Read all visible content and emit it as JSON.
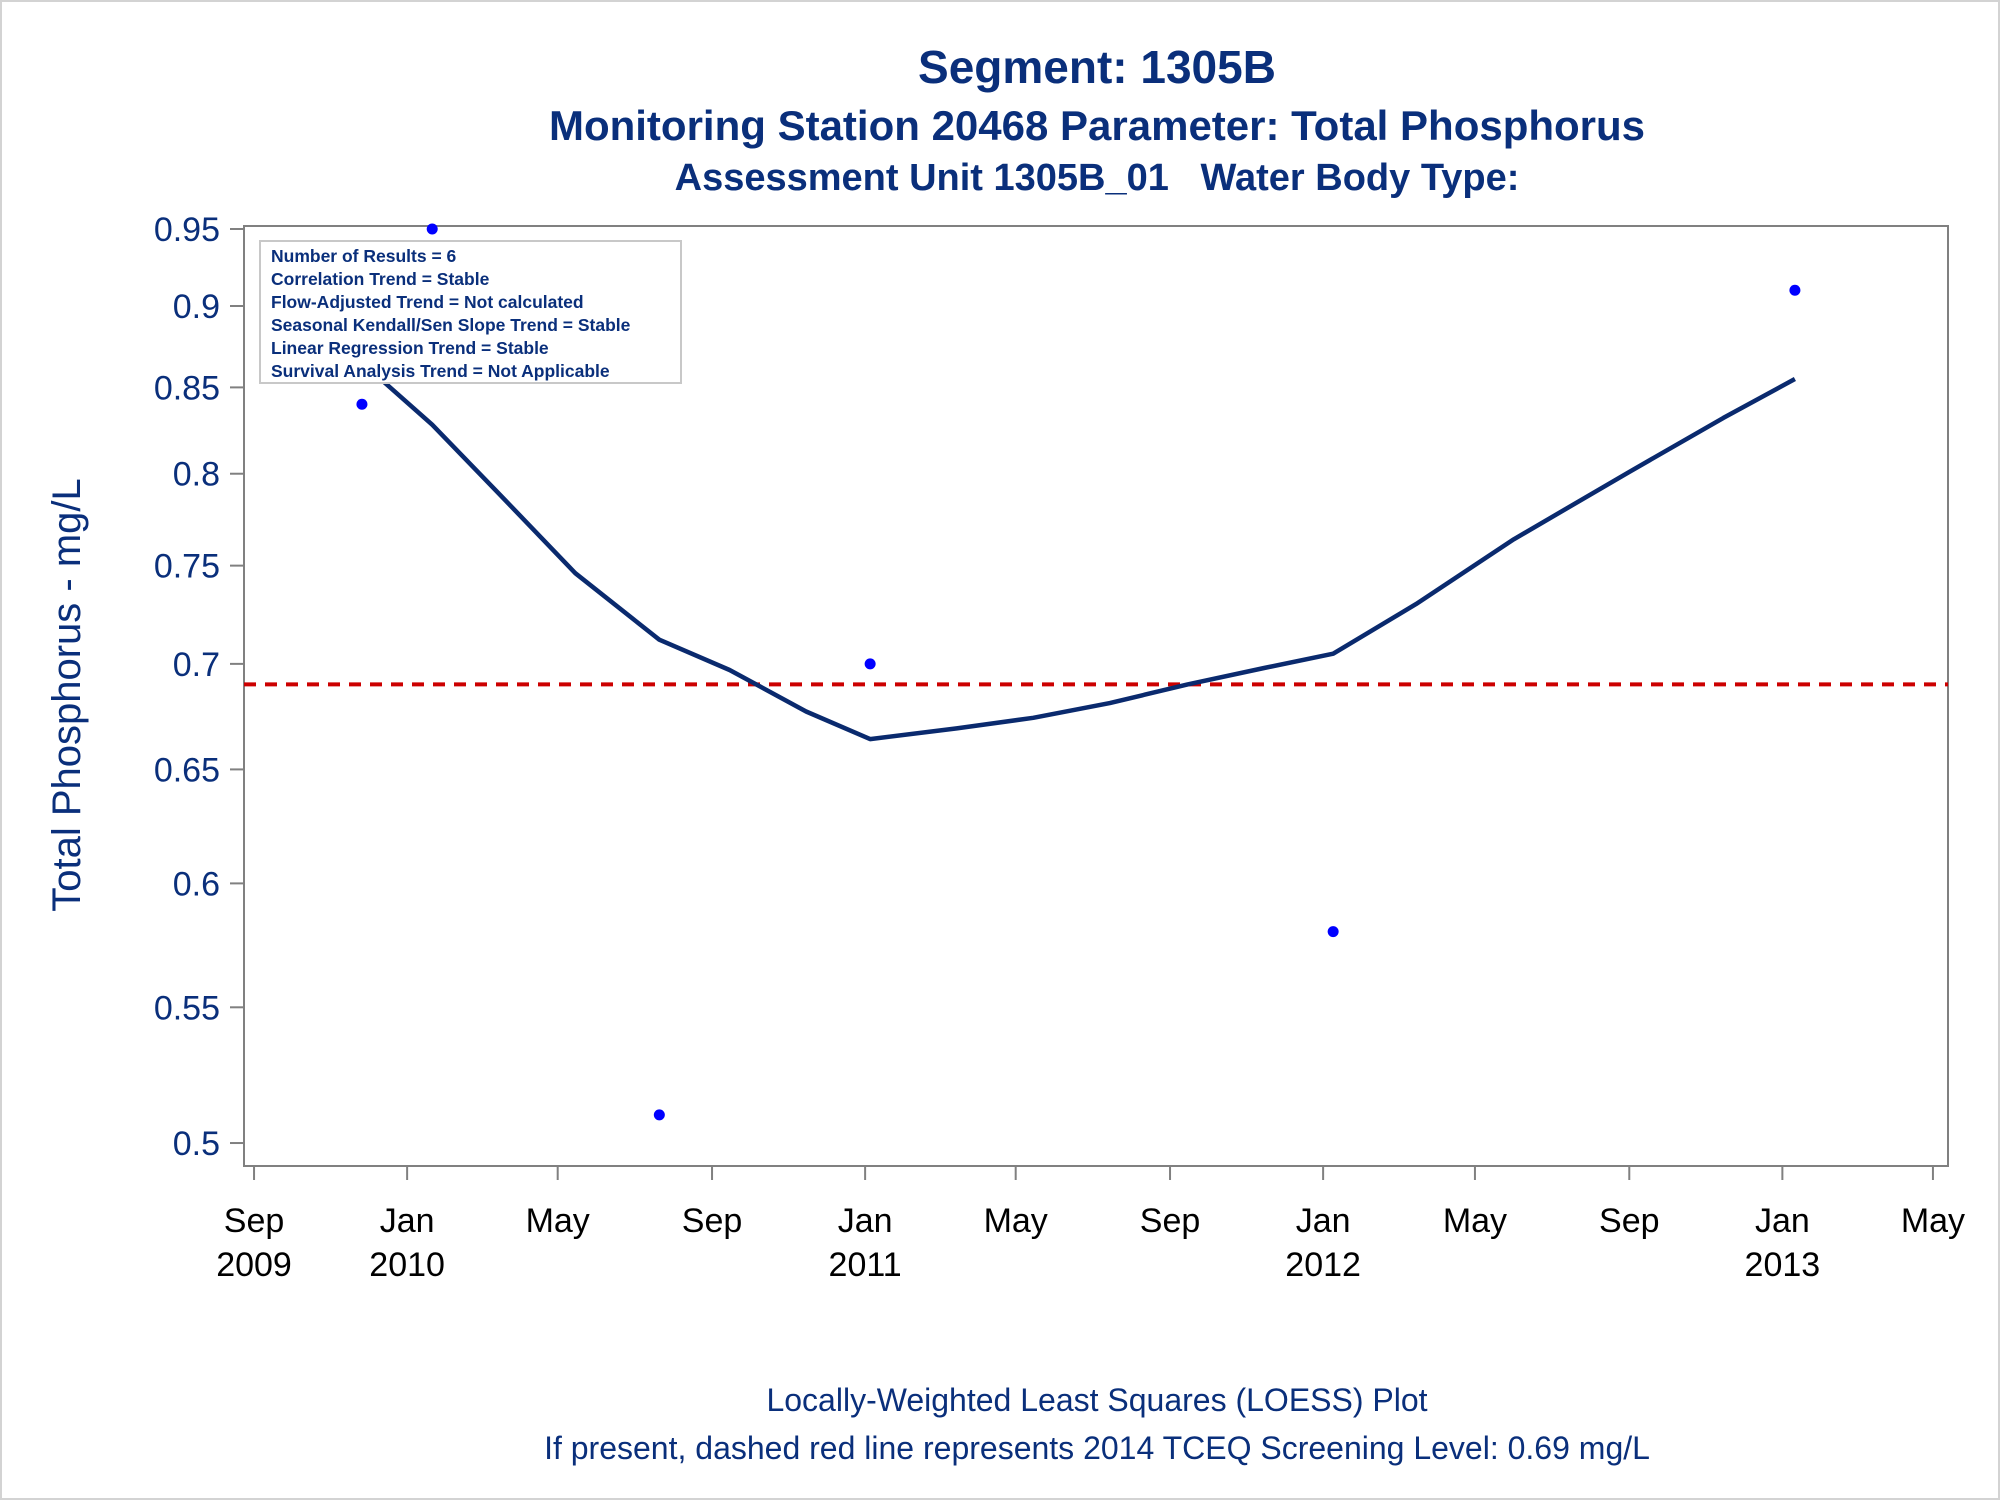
{
  "page": {
    "title": "Segment: 1305B",
    "subtitle_line1": "Monitoring Station 20468 Parameter: Total Phosphorus",
    "subtitle_line2": "Assessment Unit 1305B_01   Water Body Type:",
    "footnote_line1": "Locally-Weighted Least Squares (LOESS) Plot",
    "footnote_line2": "If present, dashed red line represents 2014 TCEQ Screening Level: 0.69 mg/L"
  },
  "stats_box": [
    "Number of Results = 6",
    "Correlation Trend = Stable",
    "Flow-Adjusted Trend = Not calculated",
    "Seasonal Kendall/Sen Slope Trend = Stable",
    "Linear Regression Trend = Stable",
    "Survival Analysis Trend = Not Applicable"
  ],
  "colors": {
    "text": "#0a2f7b",
    "points": "#0000ff",
    "loess_line": "#0a2a6e",
    "screening_line": "#cc0000",
    "axis": "#808080"
  },
  "chart_data": {
    "type": "scatter",
    "ylabel": "Total Phosphorus - mg/L",
    "xlabel": "",
    "y_scale": "log",
    "ylim": [
      0.492,
      0.952
    ],
    "xlim": [
      "2009-08-24",
      "2013-05-13"
    ],
    "yticks": [
      0.5,
      0.55,
      0.6,
      0.65,
      0.7,
      0.75,
      0.8,
      0.85,
      0.9,
      0.95
    ],
    "ytick_labels": [
      "0.5",
      "0.55",
      "0.6",
      "0.65",
      "0.7",
      "0.75",
      "0.8",
      "0.85",
      "0.9",
      "0.95"
    ],
    "xticks": [
      {
        "date": "2009-09-01",
        "month": "Sep",
        "year": "2009"
      },
      {
        "date": "2010-01-01",
        "month": "Jan",
        "year": "2010"
      },
      {
        "date": "2010-05-01",
        "month": "May",
        "year": ""
      },
      {
        "date": "2010-09-01",
        "month": "Sep",
        "year": ""
      },
      {
        "date": "2011-01-01",
        "month": "Jan",
        "year": "2011"
      },
      {
        "date": "2011-05-01",
        "month": "May",
        "year": ""
      },
      {
        "date": "2011-09-01",
        "month": "Sep",
        "year": ""
      },
      {
        "date": "2012-01-01",
        "month": "Jan",
        "year": "2012"
      },
      {
        "date": "2012-05-01",
        "month": "May",
        "year": ""
      },
      {
        "date": "2012-09-01",
        "month": "Sep",
        "year": ""
      },
      {
        "date": "2013-01-01",
        "month": "Jan",
        "year": "2013"
      },
      {
        "date": "2013-05-01",
        "month": "May",
        "year": ""
      }
    ],
    "points": [
      {
        "x": "2009-11-26",
        "y": 0.84
      },
      {
        "x": "2010-01-21",
        "y": 0.95
      },
      {
        "x": "2010-07-21",
        "y": 0.51
      },
      {
        "x": "2011-01-05",
        "y": 0.7
      },
      {
        "x": "2012-01-09",
        "y": 0.58
      },
      {
        "x": "2013-01-11",
        "y": 0.91
      }
    ],
    "loess": [
      {
        "x": "2009-11-26",
        "y": 0.865
      },
      {
        "x": "2010-01-21",
        "y": 0.828
      },
      {
        "x": "2010-03-15",
        "y": 0.789
      },
      {
        "x": "2010-05-15",
        "y": 0.746
      },
      {
        "x": "2010-07-21",
        "y": 0.712
      },
      {
        "x": "2010-09-15",
        "y": 0.697
      },
      {
        "x": "2010-11-15",
        "y": 0.677
      },
      {
        "x": "2011-01-05",
        "y": 0.664
      },
      {
        "x": "2011-03-15",
        "y": 0.669
      },
      {
        "x": "2011-05-15",
        "y": 0.674
      },
      {
        "x": "2011-07-15",
        "y": 0.681
      },
      {
        "x": "2011-09-15",
        "y": 0.69
      },
      {
        "x": "2011-11-15",
        "y": 0.698
      },
      {
        "x": "2012-01-09",
        "y": 0.705
      },
      {
        "x": "2012-03-15",
        "y": 0.73
      },
      {
        "x": "2012-06-01",
        "y": 0.764
      },
      {
        "x": "2012-09-01",
        "y": 0.801
      },
      {
        "x": "2012-11-15",
        "y": 0.832
      },
      {
        "x": "2013-01-11",
        "y": 0.855
      }
    ],
    "screening_level": 0.69
  }
}
